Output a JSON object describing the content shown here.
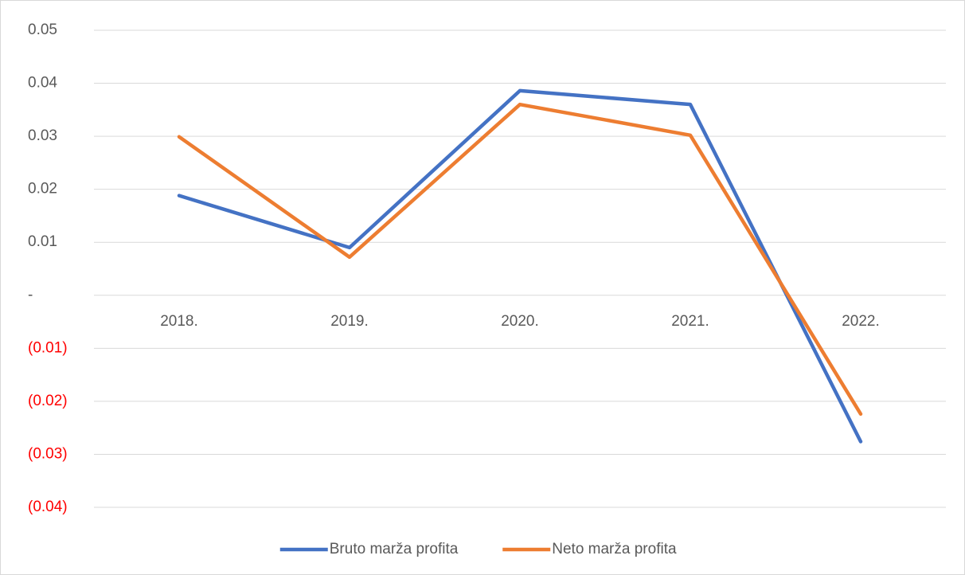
{
  "chart_data": {
    "type": "line",
    "categories": [
      "2018.",
      "2019.",
      "2020.",
      "2021.",
      "2022."
    ],
    "series": [
      {
        "name": "Bruto marža profita",
        "color": "#4472c4",
        "values": [
          0.0188,
          0.009,
          0.0386,
          0.036,
          -0.0276
        ]
      },
      {
        "name": "Neto marža profita",
        "color": "#ed7d31",
        "values": [
          0.0299,
          0.0072,
          0.036,
          0.0302,
          -0.0224
        ]
      }
    ],
    "ylim": [
      -0.04,
      0.05
    ],
    "yticks": [
      {
        "value": -0.04,
        "label": "(0.04)"
      },
      {
        "value": -0.03,
        "label": "(0.03)"
      },
      {
        "value": -0.02,
        "label": "(0.02)"
      },
      {
        "value": -0.01,
        "label": "(0.01)"
      },
      {
        "value": 0,
        "label": "-"
      },
      0.01,
      0.02,
      0.03,
      0.04,
      0.05
    ],
    "negative_tick_color": "#ff0000",
    "grid": true,
    "legend": "bottom"
  }
}
